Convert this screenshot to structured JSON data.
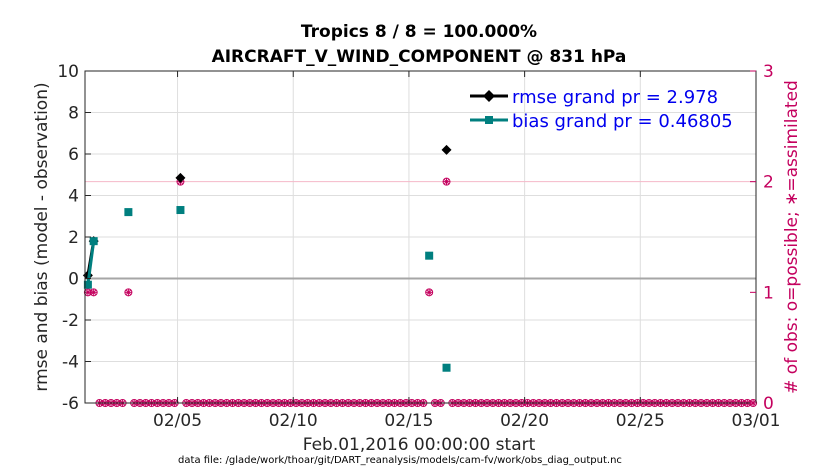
{
  "chart_data": {
    "type": "line",
    "title_line1": "Tropics 8 / 8 = 100.000%",
    "title_line2": "AIRCRAFT_V_WIND_COMPONENT @ 831 hPa",
    "xlabel": "Feb.01,2016 00:00:00 start",
    "ylabel": "rmse and bias (model - observation)",
    "y2label": "# of obs: o=possible; ∗=assimilated",
    "footnote": "data file: /glade/work/thoar/git/DART_reanalysis/models/cam-fv/work/obs_diag_output.nc",
    "xlim": [
      0,
      29
    ],
    "ylim": [
      -6,
      10
    ],
    "y2lim": [
      0,
      3
    ],
    "x_ticks": [
      4,
      9,
      14,
      19,
      24,
      29
    ],
    "x_tick_labels": [
      "02/05",
      "02/10",
      "02/15",
      "02/20",
      "02/25",
      "03/01"
    ],
    "y_ticks": [
      -6,
      -4,
      -2,
      0,
      2,
      4,
      6,
      8,
      10
    ],
    "y_tick_labels": [
      "-6",
      "-4",
      "-2",
      "0",
      "2",
      "4",
      "6",
      "8",
      "10"
    ],
    "y2_ticks": [
      0,
      1,
      2,
      3
    ],
    "y2_tick_labels": [
      "0",
      "1",
      "2",
      "3"
    ],
    "legend": [
      {
        "name": "rmse grand pr = 2.978",
        "color": "#000000"
      },
      {
        "name": "bias grand pr = 0.46805",
        "color": "#007f7f"
      }
    ],
    "series": [
      {
        "name": "rmse",
        "color": "#000000",
        "x": [
          0.125,
          0.375,
          4.125,
          15.625
        ],
        "y": [
          0.15,
          1.8,
          4.85,
          6.2
        ]
      },
      {
        "name": "bias",
        "color": "#007f7f",
        "x": [
          0.125,
          0.375,
          1.875,
          4.125,
          14.875,
          15.625
        ],
        "y": [
          -0.3,
          1.8,
          3.2,
          3.3,
          1.1,
          -4.3
        ]
      }
    ],
    "obs_count": {
      "bins_per_day": 4,
      "days": 29,
      "possible": {
        "0.125": 1,
        "0.375": 1,
        "1.875": 1,
        "4.125": 2,
        "14.875": 1,
        "15.625": 2
      },
      "assimilated": {
        "0.125": 1,
        "0.375": 1,
        "1.875": 1,
        "4.125": 2,
        "14.875": 1,
        "15.625": 2
      }
    },
    "colors": {
      "obs": "#c4005e",
      "zero_line": "#a6a6a6",
      "grid": "#dedede",
      "ref_line": "#f4b8c8"
    }
  }
}
